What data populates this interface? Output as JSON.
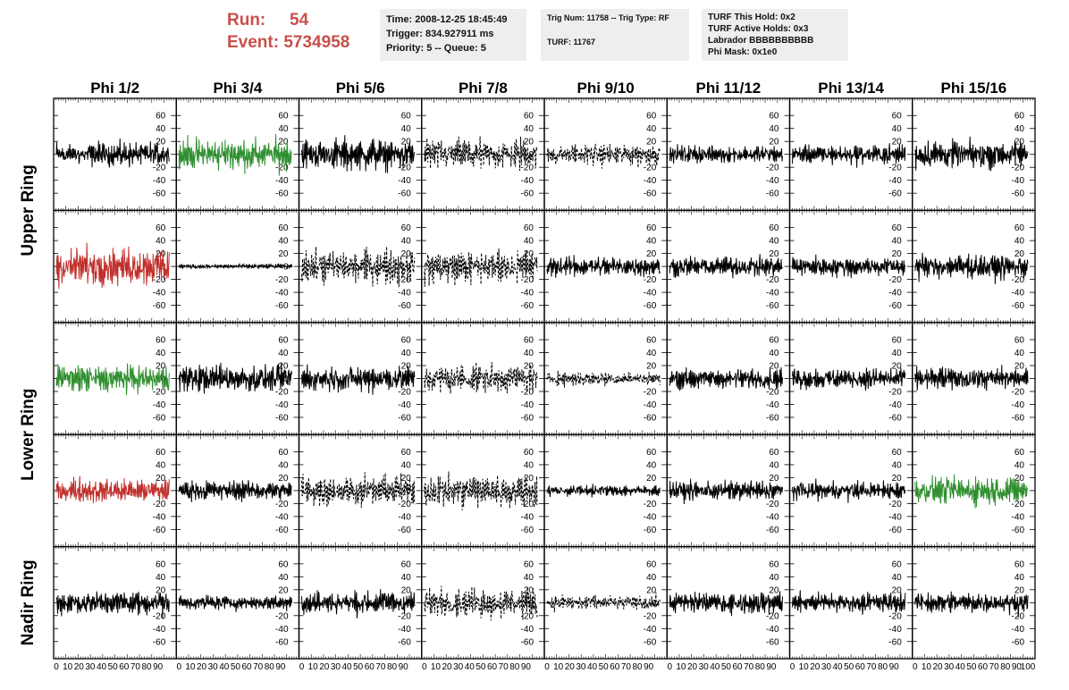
{
  "header": {
    "run_label": "Run:",
    "run_value": "54",
    "event_label": "Event:",
    "event_value": "5734958",
    "box1": [
      "Time: 2008-12-25 18:45:49",
      "Trigger: 834.927911 ms",
      "Priority: 5 -- Queue: 5"
    ],
    "box2": [
      "Trig Num: 11758 -- Trig Type: RF",
      "TURF: 11767"
    ],
    "box3": [
      "TURF This Hold: 0x2",
      "TURF Active Holds: 0x3",
      "Labrador BBBBBBBBBB",
      "Phi Mask: 0x1e0"
    ]
  },
  "colors": {
    "red": "#c0302c",
    "green": "#2f8f2f",
    "black": "#000000"
  },
  "chart_data": {
    "type": "line",
    "columns": [
      "Phi 1/2",
      "Phi 3/4",
      "Phi 5/6",
      "Phi 7/8",
      "Phi 9/10",
      "Phi 11/12",
      "Phi 13/14",
      "Phi 15/16"
    ],
    "ring_labels": [
      {
        "text": "Upper Ring",
        "rows": [
          0,
          1
        ]
      },
      {
        "text": "Lower Ring",
        "rows": [
          2,
          3
        ]
      },
      {
        "text": "Nadir Ring",
        "rows": [
          4
        ]
      }
    ],
    "ylim": [
      -70,
      70
    ],
    "y_ticks": [
      -60,
      -40,
      -20,
      0,
      20,
      40,
      60
    ],
    "xlim": [
      0,
      100
    ],
    "x_ticks": [
      0,
      10,
      20,
      30,
      40,
      50,
      60,
      70,
      80,
      90,
      100
    ],
    "x_tick_labels": [
      "0",
      "10",
      "20",
      "30",
      "40",
      "50",
      "60",
      "70",
      "80",
      "90",
      "100"
    ],
    "note": "",
    "panels": [
      [
        {
          "color": "black",
          "dash": false,
          "amp": 13
        },
        {
          "color": "green",
          "dash": false,
          "amp": 17
        },
        {
          "color": "black",
          "dash": false,
          "amp": 17
        },
        {
          "color": "black",
          "dash": true,
          "amp": 17
        },
        {
          "color": "black",
          "dash": true,
          "amp": 12
        },
        {
          "color": "black",
          "dash": false,
          "amp": 10
        },
        {
          "color": "black",
          "dash": false,
          "amp": 11
        },
        {
          "color": "black",
          "dash": false,
          "amp": 15
        }
      ],
      [
        {
          "color": "red",
          "dash": false,
          "amp": 21
        },
        {
          "color": "black",
          "dash": false,
          "amp": 2.5
        },
        {
          "color": "black",
          "dash": true,
          "amp": 19
        },
        {
          "color": "black",
          "dash": true,
          "amp": 18
        },
        {
          "color": "black",
          "dash": false,
          "amp": 11
        },
        {
          "color": "black",
          "dash": false,
          "amp": 11
        },
        {
          "color": "black",
          "dash": false,
          "amp": 11
        },
        {
          "color": "black",
          "dash": false,
          "amp": 14
        }
      ],
      [
        {
          "color": "green",
          "dash": false,
          "amp": 15
        },
        {
          "color": "black",
          "dash": false,
          "amp": 15
        },
        {
          "color": "black",
          "dash": false,
          "amp": 15
        },
        {
          "color": "black",
          "dash": true,
          "amp": 15
        },
        {
          "color": "black",
          "dash": true,
          "amp": 8
        },
        {
          "color": "black",
          "dash": false,
          "amp": 11
        },
        {
          "color": "black",
          "dash": false,
          "amp": 12
        },
        {
          "color": "black",
          "dash": false,
          "amp": 12
        }
      ],
      [
        {
          "color": "red",
          "dash": false,
          "amp": 13
        },
        {
          "color": "black",
          "dash": false,
          "amp": 11
        },
        {
          "color": "black",
          "dash": true,
          "amp": 16
        },
        {
          "color": "black",
          "dash": true,
          "amp": 19
        },
        {
          "color": "black",
          "dash": false,
          "amp": 6
        },
        {
          "color": "black",
          "dash": false,
          "amp": 11
        },
        {
          "color": "black",
          "dash": false,
          "amp": 10
        },
        {
          "color": "green",
          "dash": false,
          "amp": 15
        }
      ],
      [
        {
          "color": "black",
          "dash": false,
          "amp": 13
        },
        {
          "color": "black",
          "dash": false,
          "amp": 8
        },
        {
          "color": "black",
          "dash": false,
          "amp": 14
        },
        {
          "color": "black",
          "dash": true,
          "amp": 15
        },
        {
          "color": "black",
          "dash": true,
          "amp": 8
        },
        {
          "color": "black",
          "dash": false,
          "amp": 12
        },
        {
          "color": "black",
          "dash": false,
          "amp": 11
        },
        {
          "color": "black",
          "dash": false,
          "amp": 11
        }
      ]
    ]
  }
}
